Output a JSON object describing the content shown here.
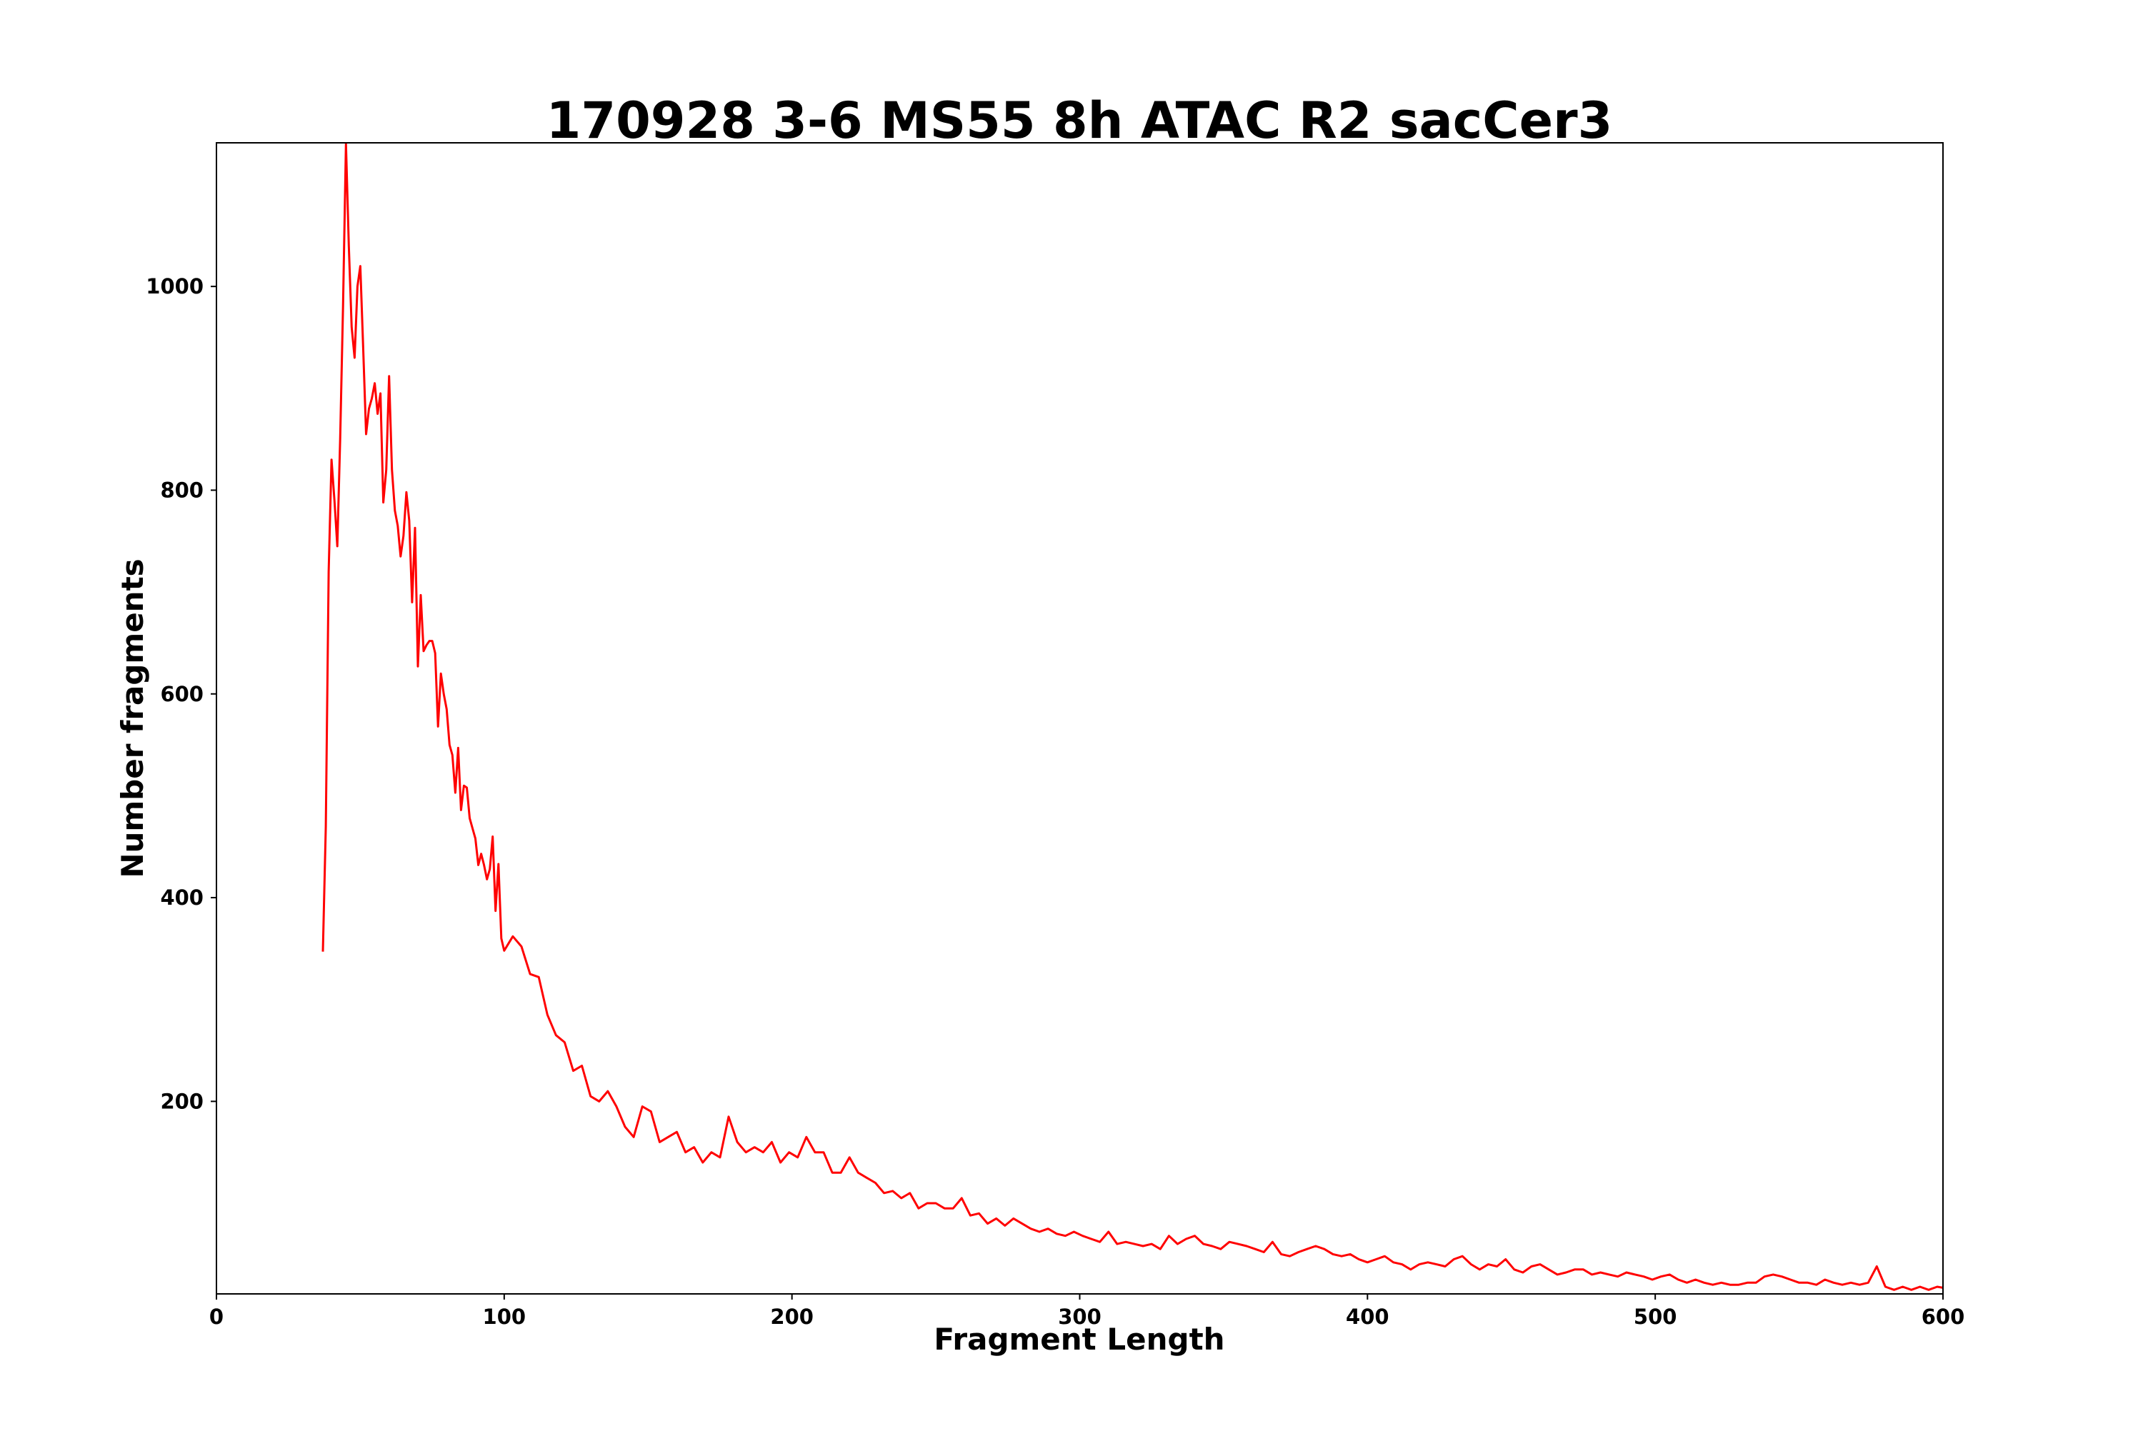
{
  "chart_data": {
    "type": "line",
    "title": "170928 3-6 MS55 8h ATAC R2 sacCer3",
    "xlabel": "Fragment Length",
    "ylabel": "Number fragments",
    "xlim": [
      0,
      600
    ],
    "ylim": [
      11,
      1141
    ],
    "xticks": [
      "0",
      "100",
      "200",
      "300",
      "400",
      "500",
      "600"
    ],
    "yticks": [
      "200",
      "400",
      "600",
      "800",
      "1000"
    ],
    "grid": false,
    "series": [
      {
        "name": "fragments",
        "color": "#ff0000",
        "x": [
          37,
          38,
          39,
          40,
          41,
          42,
          43,
          44,
          45,
          46,
          47,
          48,
          49,
          50,
          51,
          52,
          53,
          54,
          55,
          56,
          57,
          58,
          59,
          60,
          61,
          62,
          63,
          64,
          65,
          66,
          67,
          68,
          69,
          70,
          71,
          72,
          73,
          74,
          75,
          76,
          77,
          78,
          79,
          80,
          81,
          82,
          83,
          84,
          85,
          86,
          87,
          88,
          89,
          90,
          91,
          92,
          93,
          94,
          95,
          96,
          97,
          98,
          99,
          100,
          103,
          106,
          109,
          112,
          115,
          118,
          121,
          124,
          127,
          130,
          133,
          136,
          139,
          142,
          145,
          148,
          151,
          154,
          157,
          160,
          163,
          166,
          169,
          172,
          175,
          178,
          181,
          184,
          187,
          190,
          193,
          196,
          199,
          202,
          205,
          208,
          211,
          214,
          217,
          220,
          223,
          226,
          229,
          232,
          235,
          238,
          241,
          244,
          247,
          250,
          253,
          256,
          259,
          262,
          265,
          268,
          271,
          274,
          277,
          280,
          283,
          286,
          289,
          292,
          295,
          298,
          301,
          304,
          307,
          310,
          313,
          316,
          319,
          322,
          325,
          328,
          331,
          334,
          337,
          340,
          343,
          346,
          349,
          352,
          355,
          358,
          361,
          364,
          367,
          370,
          373,
          376,
          379,
          382,
          385,
          388,
          391,
          394,
          397,
          400,
          403,
          406,
          409,
          412,
          415,
          418,
          421,
          424,
          427,
          430,
          433,
          436,
          439,
          442,
          445,
          448,
          451,
          454,
          457,
          460,
          463,
          466,
          469,
          472,
          475,
          478,
          481,
          484,
          487,
          490,
          493,
          496,
          499,
          502,
          505,
          508,
          511,
          514,
          517,
          520,
          523,
          526,
          529,
          532,
          535,
          538,
          541,
          544,
          547,
          550,
          553,
          556,
          559,
          562,
          565,
          568,
          571,
          574,
          577,
          580,
          583,
          586,
          589,
          592,
          595,
          598,
          600
        ],
        "y": [
          347,
          470,
          720,
          830,
          790,
          745,
          850,
          980,
          1140,
          1040,
          960,
          930,
          1000,
          1020,
          940,
          855,
          880,
          890,
          905,
          875,
          895,
          788,
          820,
          912,
          820,
          780,
          765,
          735,
          755,
          798,
          770,
          690,
          763,
          627,
          697,
          642,
          648,
          652,
          652,
          640,
          568,
          620,
          600,
          585,
          550,
          540,
          503,
          547,
          486,
          510,
          508,
          478,
          468,
          458,
          432,
          443,
          432,
          418,
          428,
          460,
          387,
          433,
          360,
          348,
          362,
          352,
          325,
          322,
          285,
          265,
          258,
          230,
          235,
          205,
          200,
          210,
          195,
          175,
          165,
          195,
          190,
          160,
          165,
          170,
          150,
          155,
          140,
          150,
          145,
          185,
          160,
          150,
          155,
          150,
          160,
          140,
          150,
          145,
          165,
          150,
          150,
          130,
          130,
          145,
          130,
          125,
          120,
          110,
          112,
          105,
          110,
          95,
          100,
          100,
          95,
          95,
          105,
          88,
          90,
          80,
          85,
          78,
          85,
          80,
          75,
          72,
          75,
          70,
          68,
          72,
          68,
          65,
          62,
          72,
          60,
          62,
          60,
          58,
          60,
          55,
          68,
          60,
          65,
          68,
          60,
          58,
          55,
          62,
          60,
          58,
          55,
          52,
          62,
          50,
          48,
          52,
          55,
          58,
          55,
          50,
          48,
          50,
          45,
          42,
          45,
          48,
          42,
          40,
          35,
          40,
          42,
          40,
          38,
          45,
          48,
          40,
          35,
          40,
          38,
          45,
          35,
          32,
          38,
          40,
          35,
          30,
          32,
          35,
          35,
          30,
          32,
          30,
          28,
          32,
          30,
          28,
          25,
          28,
          30,
          25,
          22,
          25,
          22,
          20,
          22,
          20,
          20,
          22,
          22,
          28,
          30,
          28,
          25,
          22,
          22,
          20,
          25,
          22,
          20,
          22,
          20,
          22,
          38,
          18,
          15,
          18,
          15,
          18,
          15,
          18,
          17
        ]
      }
    ]
  }
}
